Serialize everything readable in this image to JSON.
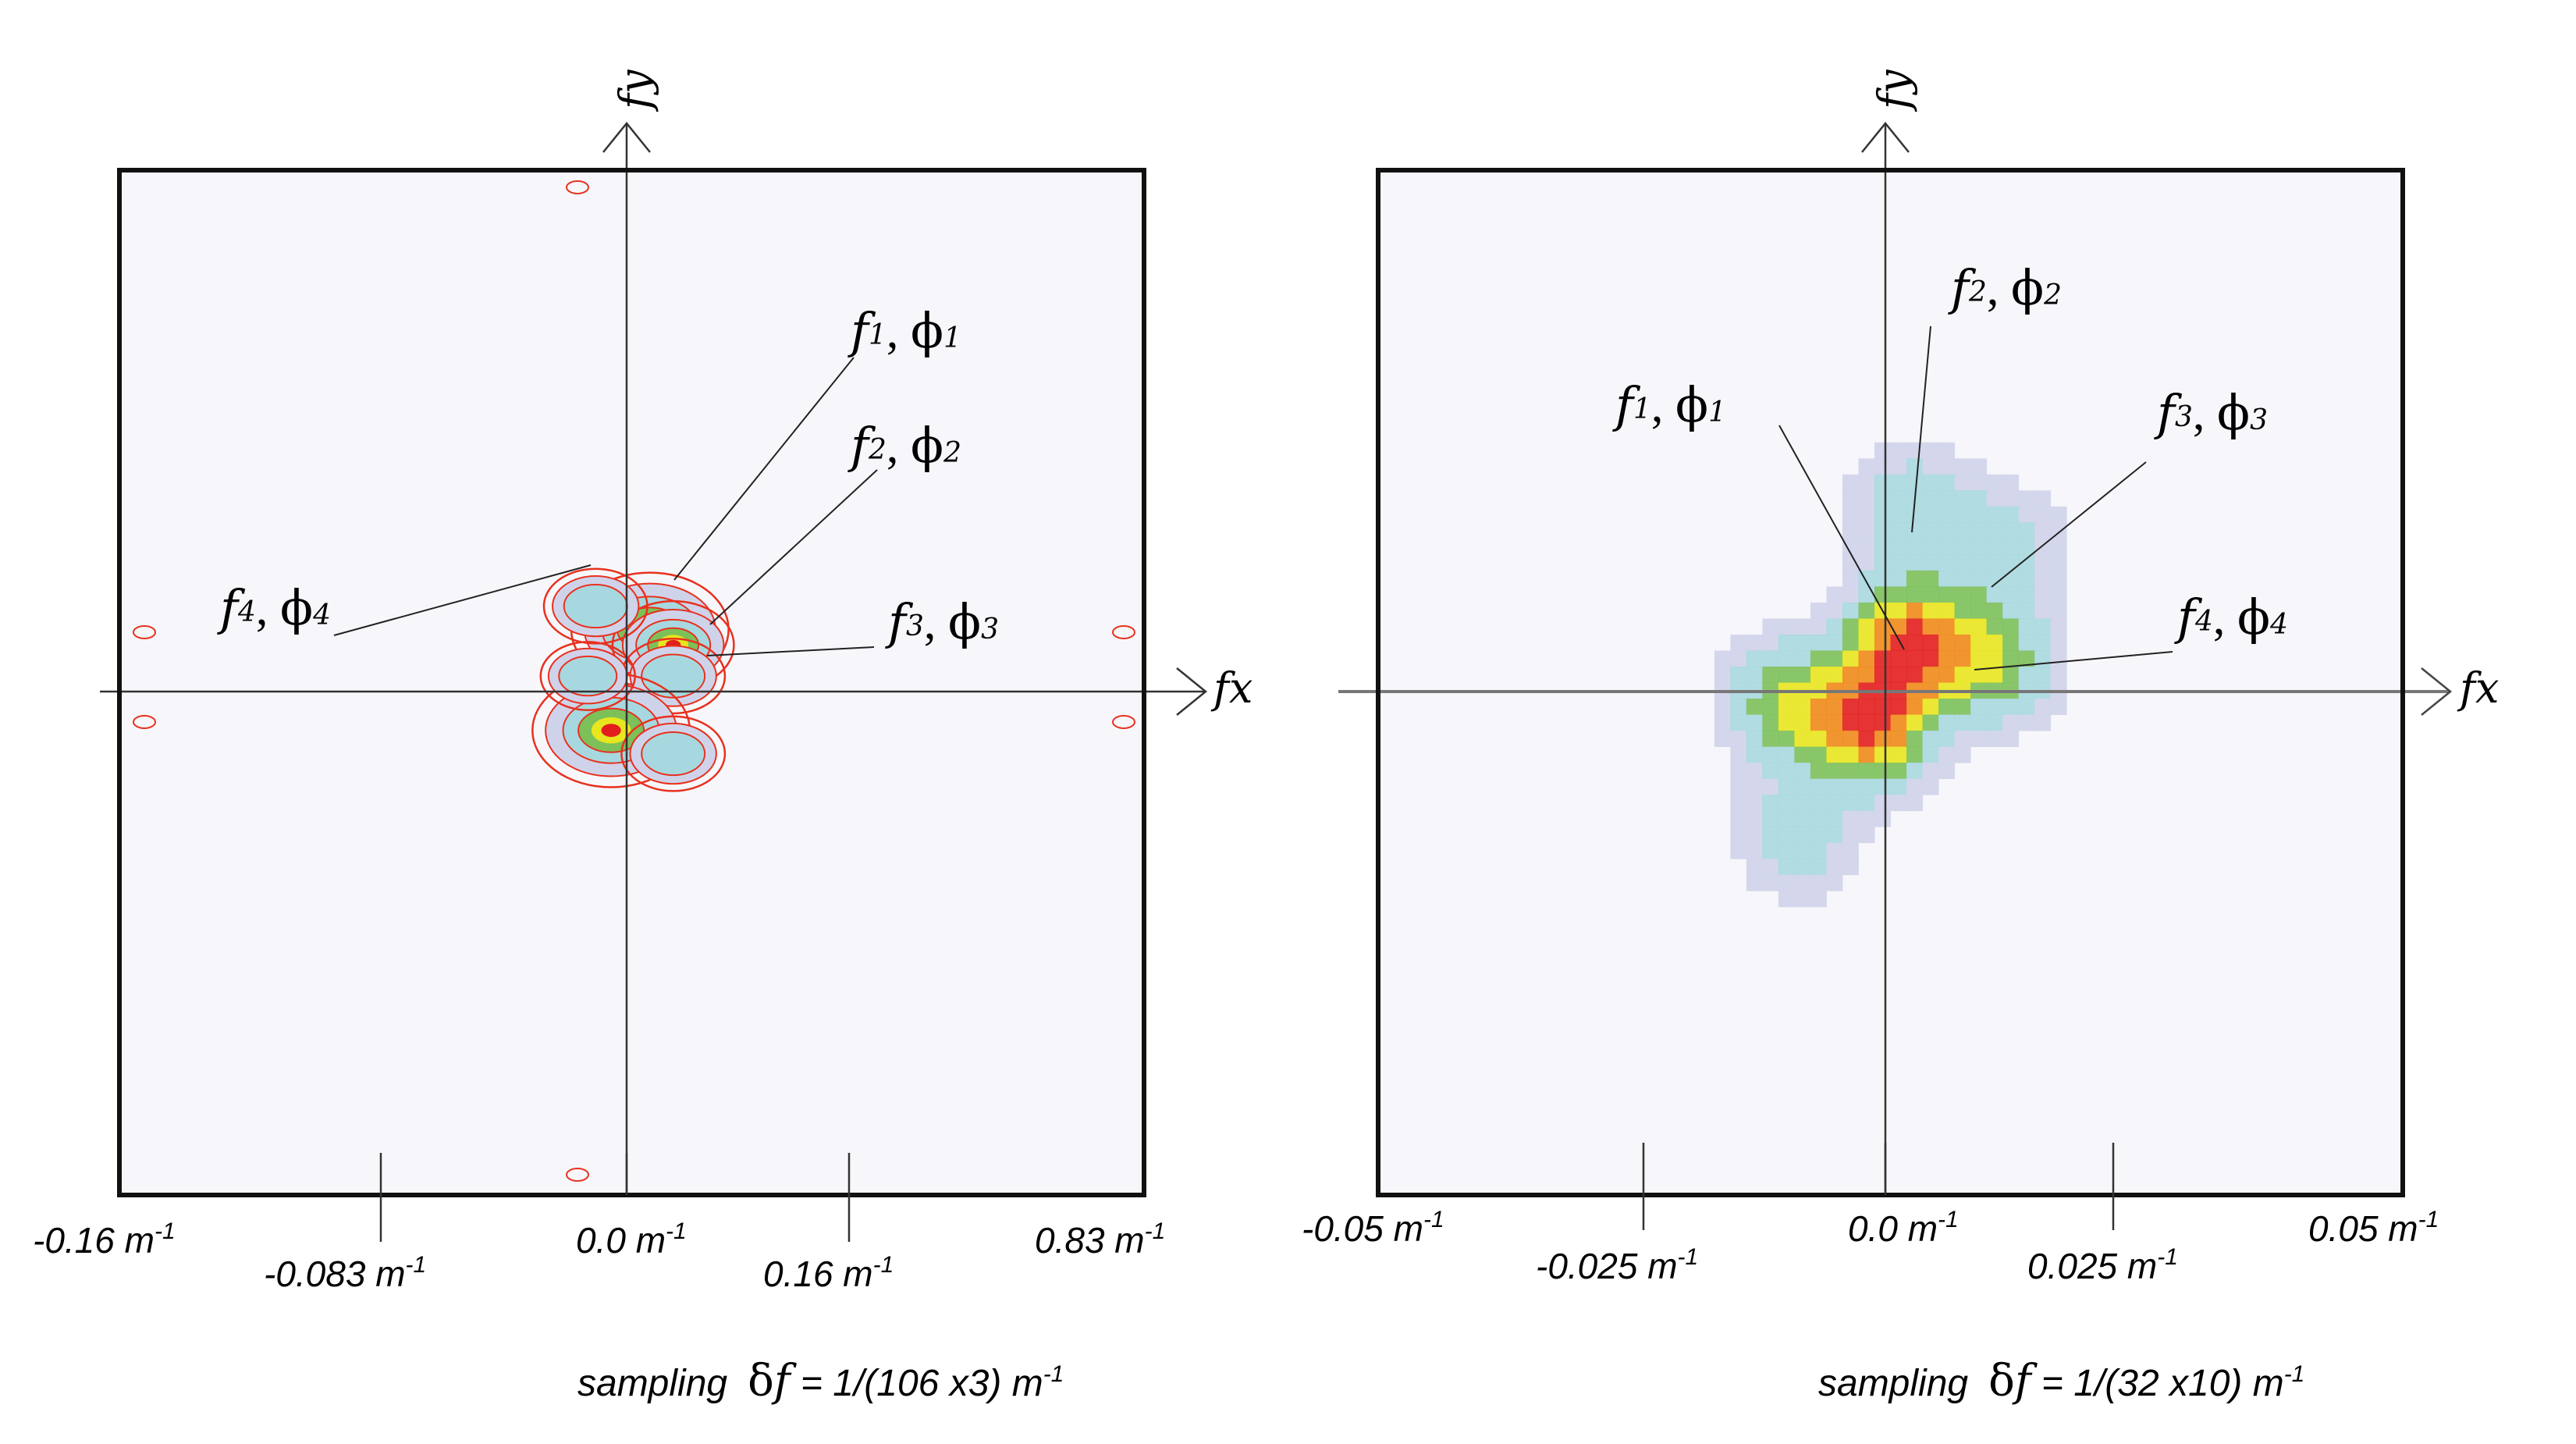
{
  "chart_data": [
    {
      "type": "heatmap",
      "subtype": "contour",
      "title": "",
      "x_axis_label": "fx",
      "y_axis_label": "fy",
      "xlim": [
        -0.16,
        0.83
      ],
      "x_tick_labels": [
        {
          "value": -0.16,
          "text": "-0.16 m",
          "sup": "-1",
          "row": "upper"
        },
        {
          "value": -0.083,
          "text": "-0.083 m",
          "sup": "-1",
          "row": "lower"
        },
        {
          "value": 0.0,
          "text": "0.0 m",
          "sup": "-1",
          "row": "upper"
        },
        {
          "value": 0.16,
          "text": "0.16 m",
          "sup": "-1",
          "row": "lower"
        },
        {
          "value": 0.83,
          "text": "0.83 m",
          "sup": "-1",
          "row": "upper"
        }
      ],
      "sampling": {
        "prefix": "sampling",
        "delta": "δ",
        "f": "f",
        "rest": " = 1/(106 x3) m",
        "sup": "-1"
      },
      "peaks": [
        {
          "sub": "1",
          "fx": 0.03,
          "fy": 0.08,
          "intensity": 1.0
        },
        {
          "sub": "2",
          "fx": 0.06,
          "fy": 0.06,
          "intensity": 0.6
        },
        {
          "sub": "3",
          "fx": 0.06,
          "fy": 0.02,
          "intensity": 0.4
        },
        {
          "sub": "4",
          "fx": -0.04,
          "fy": 0.11,
          "intensity": 0.4
        }
      ],
      "mirror_peaks": [
        {
          "fx": -0.02,
          "fy": -0.05,
          "intensity": 1.0
        },
        {
          "fx": 0.06,
          "fy": -0.08,
          "intensity": 0.4
        },
        {
          "fx": -0.05,
          "fy": 0.02,
          "intensity": 0.3
        }
      ],
      "annotations": [
        {
          "letter": "f",
          "sub": "1",
          "phi": "ϕ",
          "psub": "1"
        },
        {
          "letter": "f",
          "sub": "2",
          "phi": "ϕ",
          "psub": "2"
        },
        {
          "letter": "f",
          "sub": "3",
          "phi": "ϕ",
          "psub": "3"
        },
        {
          "letter": "f",
          "sub": "4",
          "phi": "ϕ",
          "psub": "4"
        }
      ]
    },
    {
      "type": "heatmap",
      "subtype": "pixel",
      "title": "",
      "x_axis_label": "fx",
      "y_axis_label": "fy",
      "xlim": [
        -0.05,
        0.05
      ],
      "ylim": [
        -0.05,
        0.05
      ],
      "x_tick_labels": [
        {
          "value": -0.05,
          "text": "-0.05 m",
          "sup": "-1",
          "row": "upper"
        },
        {
          "value": -0.025,
          "text": "-0.025 m",
          "sup": "-1",
          "row": "lower"
        },
        {
          "value": 0.0,
          "text": "0.0 m",
          "sup": "-1",
          "row": "upper"
        },
        {
          "value": 0.025,
          "text": "0.025 m",
          "sup": "-1",
          "row": "lower"
        },
        {
          "value": 0.05,
          "text": "0.05 m",
          "sup": "-1",
          "row": "upper"
        }
      ],
      "sampling": {
        "prefix": "sampling",
        "delta": "δ",
        "f": "f",
        "rest": "  = 1/(32 x10) m",
        "sup": "-1"
      },
      "peaks": [
        {
          "sub": "1",
          "fx": 0.002,
          "fy": 0.004,
          "intensity": 1.0
        },
        {
          "sub": "2",
          "fx": 0.002,
          "fy": 0.017,
          "intensity": 0.35
        },
        {
          "sub": "3",
          "fx": 0.011,
          "fy": 0.013,
          "intensity": 0.3
        },
        {
          "sub": "4",
          "fx": 0.01,
          "fy": 0.002,
          "intensity": 0.55
        }
      ],
      "mirror_peaks": [
        {
          "fx": -0.002,
          "fy": -0.004,
          "intensity": 1.0
        },
        {
          "fx": -0.009,
          "fy": -0.015,
          "intensity": 0.3
        },
        {
          "fx": -0.01,
          "fy": -0.002,
          "intensity": 0.55
        }
      ],
      "annotations": [
        {
          "letter": "f",
          "sub": "1",
          "phi": "ϕ",
          "psub": "1"
        },
        {
          "letter": "f",
          "sub": "2",
          "phi": "ϕ",
          "psub": "2"
        },
        {
          "letter": "f",
          "sub": "3",
          "phi": "ϕ",
          "psub": "3"
        },
        {
          "letter": "f",
          "sub": "4",
          "phi": "ϕ",
          "psub": "4"
        }
      ]
    }
  ],
  "colors": {
    "background": "#f7f7fb",
    "frame": "#111111",
    "axis": "#333333",
    "contour": "#e8311e",
    "low": "#cfd3ea",
    "mid": "#a7d8df",
    "green": "#7cc05a",
    "yellow": "#e8e61e",
    "orange": "#f08a1a",
    "red": "#e31e1e"
  }
}
